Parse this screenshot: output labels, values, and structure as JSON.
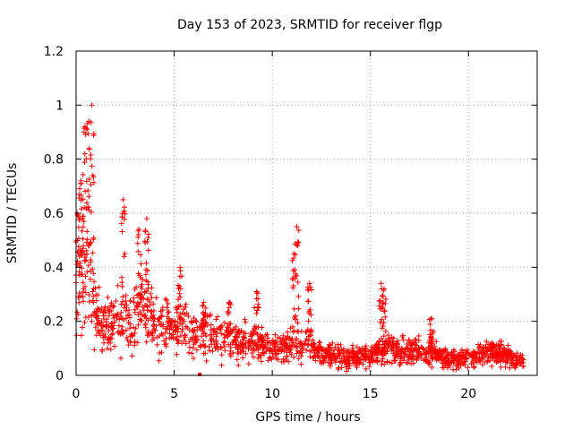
{
  "chart_data": {
    "type": "scatter",
    "title": "Day 153 of 2023, SRMTID for receiver flgp",
    "xlabel": "GPS time / hours",
    "ylabel": "SRMTID / TECUs",
    "xlim": [
      0,
      23.5
    ],
    "ylim": [
      0,
      1.2
    ],
    "xticks": [
      0,
      5,
      10,
      15,
      20
    ],
    "xtick_labels": [
      "0",
      "5",
      "10",
      "15",
      "20"
    ],
    "yticks": [
      0,
      0.2,
      0.4,
      0.6,
      0.8,
      1.0,
      1.2
    ],
    "ytick_labels": [
      "0",
      "0.2",
      "0.4",
      "0.6",
      "0.8",
      "1",
      "1.2"
    ],
    "grid": true,
    "marker": "+",
    "color": "#ff0000",
    "outlier": [
      6.3,
      0.0
    ],
    "series": [
      {
        "name": "SRMTID",
        "envelope_x": [
          0.0,
          0.3,
          0.5,
          0.7,
          1.0,
          1.5,
          2.0,
          2.3,
          2.6,
          3.0,
          3.3,
          3.8,
          4.2,
          5.0,
          5.5,
          6.0,
          7.0,
          8.0,
          9.0,
          10.0,
          10.8,
          11.1,
          11.4,
          11.8,
          12.2,
          13.0,
          14.0,
          15.0,
          15.5,
          15.8,
          16.3,
          17.0,
          18.0,
          19.0,
          20.0,
          21.0,
          22.0,
          22.8
        ],
        "envelope_center": [
          0.32,
          0.4,
          0.42,
          0.4,
          0.22,
          0.17,
          0.19,
          0.22,
          0.2,
          0.24,
          0.26,
          0.22,
          0.2,
          0.17,
          0.18,
          0.15,
          0.15,
          0.12,
          0.12,
          0.1,
          0.1,
          0.14,
          0.1,
          0.13,
          0.09,
          0.07,
          0.07,
          0.07,
          0.1,
          0.11,
          0.09,
          0.09,
          0.09,
          0.06,
          0.06,
          0.09,
          0.07,
          0.05
        ],
        "envelope_spread": [
          0.15,
          0.18,
          0.2,
          0.18,
          0.09,
          0.07,
          0.07,
          0.09,
          0.09,
          0.1,
          0.1,
          0.09,
          0.08,
          0.07,
          0.07,
          0.06,
          0.06,
          0.05,
          0.05,
          0.04,
          0.04,
          0.05,
          0.04,
          0.05,
          0.035,
          0.03,
          0.03,
          0.03,
          0.04,
          0.04,
          0.035,
          0.035,
          0.035,
          0.025,
          0.025,
          0.03,
          0.03,
          0.025
        ],
        "peaks_x": [
          0.05,
          0.25,
          0.45,
          0.65,
          0.8,
          2.4,
          3.2,
          3.6,
          5.3,
          6.5,
          7.8,
          9.2,
          11.1,
          11.25,
          11.9,
          15.55,
          15.7,
          18.1,
          21.2
        ],
        "peaks_y": [
          0.6,
          0.72,
          0.92,
          0.94,
          1.0,
          0.65,
          0.54,
          0.58,
          0.4,
          0.27,
          0.27,
          0.31,
          0.45,
          0.55,
          0.34,
          0.34,
          0.32,
          0.21,
          0.12
        ]
      }
    ]
  }
}
